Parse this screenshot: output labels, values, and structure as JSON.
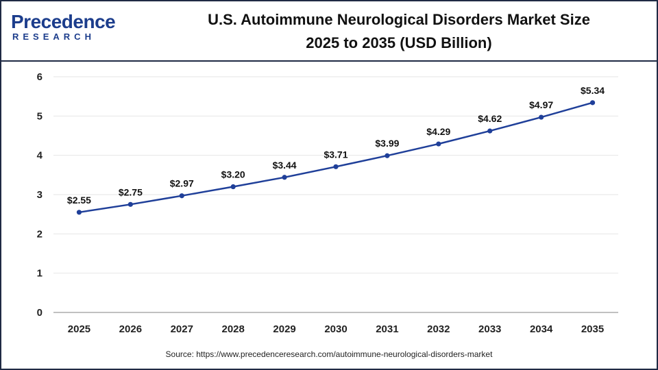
{
  "brand": {
    "logo_main": "Precedence",
    "logo_sub": "RESEARCH",
    "color": "#1c3d8c"
  },
  "header": {
    "title_line1": "U.S. Autoimmune Neurological Disorders Market Size",
    "title_line2": "2025 to 2035 (USD Billion)"
  },
  "footer": {
    "source": "Source: https://www.precedenceresearch.com/autoimmune-neurological-disorders-market"
  },
  "chart_data": {
    "type": "line",
    "title": "U.S. Autoimmune Neurological Disorders Market Size 2025 to 2035 (USD Billion)",
    "xlabel": "",
    "ylabel": "",
    "categories": [
      "2025",
      "2026",
      "2027",
      "2028",
      "2029",
      "2030",
      "2031",
      "2032",
      "2033",
      "2034",
      "2035"
    ],
    "series": [
      {
        "values": [
          2.55,
          2.75,
          2.97,
          3.2,
          3.44,
          3.71,
          3.99,
          4.29,
          4.62,
          4.97,
          5.34
        ],
        "labels": [
          "$2.55",
          "$2.75",
          "$2.97",
          "$3.20",
          "$3.44",
          "$3.71",
          "$3.99",
          "$4.29",
          "$4.62",
          "$4.97",
          "$5.34"
        ],
        "color": "#1f3f99"
      }
    ],
    "ylim": [
      0,
      6
    ],
    "yticks": [
      "0",
      "1",
      "2",
      "3",
      "4",
      "5",
      "6"
    ],
    "grid": true,
    "legend": "none"
  }
}
